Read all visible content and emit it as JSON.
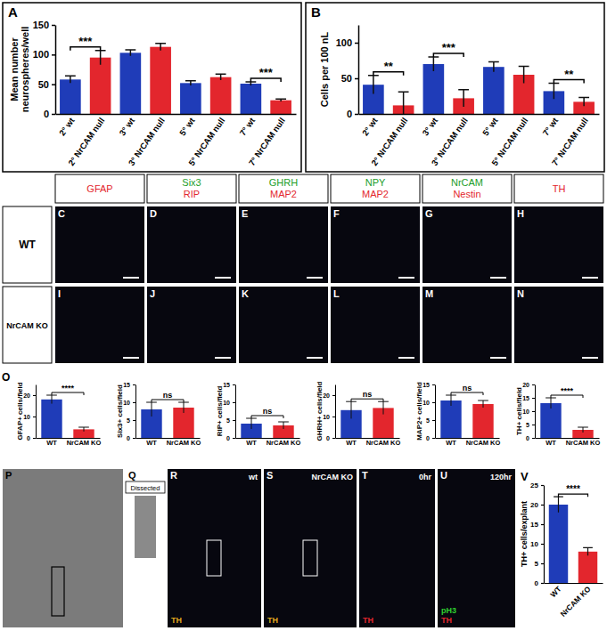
{
  "chart_data": [
    {
      "type": "bar",
      "title": "A",
      "ylabel": "Mean number neurospheres/well",
      "categories": [
        "2° wt",
        "2° NrCAM null",
        "3° wt",
        "3° NrCAM null",
        "5° wt",
        "5° NrCAM null",
        "7° wt",
        "7° NrCAM null"
      ],
      "values": [
        58,
        95,
        103,
        113,
        52,
        62,
        51,
        23
      ],
      "errors": [
        6,
        12,
        5,
        6,
        4,
        5,
        3,
        2
      ],
      "colors": [
        "#1f3cb8",
        "#e3262d",
        "#1f3cb8",
        "#e3262d",
        "#1f3cb8",
        "#e3262d",
        "#1f3cb8",
        "#e3262d"
      ],
      "ylim": [
        0,
        150
      ],
      "yticks": [
        0,
        50,
        100,
        150
      ],
      "annotations": [
        {
          "text": "***",
          "from": 0,
          "to": 1
        },
        {
          "text": "***",
          "from": 6,
          "to": 7
        }
      ]
    },
    {
      "type": "bar",
      "title": "B",
      "ylabel": "Cells per 100 nL",
      "categories": [
        "2° wt",
        "2° NrCAM null",
        "3° wt",
        "3° NrCAM null",
        "5° wt",
        "5° NrCAM null",
        "7° wt",
        "7° NrCAM null"
      ],
      "values": [
        41,
        12,
        70,
        22,
        66,
        55,
        32,
        17
      ],
      "errors": [
        13,
        19,
        10,
        12,
        7,
        12,
        11,
        6
      ],
      "colors": [
        "#1f3cb8",
        "#e3262d",
        "#1f3cb8",
        "#e3262d",
        "#1f3cb8",
        "#e3262d",
        "#1f3cb8",
        "#e3262d"
      ],
      "ylim": [
        0,
        125
      ],
      "yticks": [
        0,
        50,
        100
      ],
      "annotations": [
        {
          "text": "**",
          "from": 0,
          "to": 1
        },
        {
          "text": "***",
          "from": 2,
          "to": 3
        },
        {
          "text": "**",
          "from": 6,
          "to": 7
        }
      ]
    },
    {
      "type": "bar",
      "ylabel": "GFAP+ cells/field",
      "categories": [
        "WT",
        "NrCAM KO"
      ],
      "values": [
        18,
        4
      ],
      "errors": [
        2,
        1
      ],
      "colors": [
        "#1f3cb8",
        "#e3262d"
      ],
      "ylim": [
        0,
        25
      ],
      "yticks": [
        0,
        10,
        20
      ],
      "annotations": [
        {
          "text": "****",
          "from": 0,
          "to": 1
        }
      ]
    },
    {
      "type": "bar",
      "ylabel": "Six3+ cells/field",
      "categories": [
        "WT",
        "NrCAM KO"
      ],
      "values": [
        8,
        8.5
      ],
      "errors": [
        2,
        1.5
      ],
      "colors": [
        "#1f3cb8",
        "#e3262d"
      ],
      "ylim": [
        0,
        15
      ],
      "yticks": [
        0,
        5,
        10,
        15
      ],
      "annotations": [
        {
          "text": "ns",
          "from": 0,
          "to": 1
        }
      ]
    },
    {
      "type": "bar",
      "ylabel": "RIP+ cells/field",
      "categories": [
        "WT",
        "NrCAM KO"
      ],
      "values": [
        4,
        3.5
      ],
      "errors": [
        1.5,
        1
      ],
      "colors": [
        "#1f3cb8",
        "#e3262d"
      ],
      "ylim": [
        0,
        15
      ],
      "yticks": [
        0,
        5,
        10,
        15
      ],
      "annotations": [
        {
          "text": "ns",
          "from": 0,
          "to": 1
        }
      ]
    },
    {
      "type": "bar",
      "ylabel": "GHRH+ cells/field",
      "categories": [
        "WT",
        "NrCAM KO"
      ],
      "values": [
        13,
        14
      ],
      "errors": [
        4,
        3
      ],
      "colors": [
        "#1f3cb8",
        "#e3262d"
      ],
      "ylim": [
        0,
        25
      ],
      "yticks": [
        0,
        10,
        20
      ],
      "annotations": [
        {
          "text": "ns",
          "from": 0,
          "to": 1
        }
      ]
    },
    {
      "type": "bar",
      "ylabel": "MAP2+ cells/field",
      "categories": [
        "WT",
        "NrCAM KO"
      ],
      "values": [
        10.5,
        9.5
      ],
      "errors": [
        1.5,
        1
      ],
      "colors": [
        "#1f3cb8",
        "#e3262d"
      ],
      "ylim": [
        0,
        15
      ],
      "yticks": [
        0,
        5,
        10,
        15
      ],
      "annotations": [
        {
          "text": "ns",
          "from": 0,
          "to": 1
        }
      ]
    },
    {
      "type": "bar",
      "ylabel": "TH+ cells/field",
      "categories": [
        "WT",
        "NrCAM KO"
      ],
      "values": [
        13,
        3
      ],
      "errors": [
        2,
        1
      ],
      "colors": [
        "#1f3cb8",
        "#e3262d"
      ],
      "ylim": [
        0,
        20
      ],
      "yticks": [
        0,
        5,
        10,
        15,
        20
      ],
      "annotations": [
        {
          "text": "****",
          "from": 0,
          "to": 1
        }
      ]
    },
    {
      "type": "bar",
      "title": "V",
      "ylabel": "TH+ cells/explant",
      "categories": [
        "WT",
        "NrCAM KO"
      ],
      "values": [
        20,
        8
      ],
      "errors": [
        2,
        1
      ],
      "colors": [
        "#1f3cb8",
        "#e3262d"
      ],
      "ylim": [
        0,
        25
      ],
      "yticks": [
        0,
        5,
        10,
        15,
        20,
        25
      ],
      "annotations": [
        {
          "text": "****",
          "from": 0,
          "to": 1
        }
      ]
    }
  ],
  "panels": {
    "stains": [
      [
        {
          "text": "GFAP",
          "color": "#e3262d"
        }
      ],
      [
        {
          "text": "Six3",
          "color": "#1d9e2a"
        },
        {
          "text": "RIP",
          "color": "#e3262d"
        }
      ],
      [
        {
          "text": "GHRH",
          "color": "#1d9e2a"
        },
        {
          "text": "MAP2",
          "color": "#e3262d"
        }
      ],
      [
        {
          "text": "NPY",
          "color": "#1d9e2a"
        },
        {
          "text": "MAP2",
          "color": "#e3262d"
        }
      ],
      [
        {
          "text": "NrCAM",
          "color": "#1d9e2a"
        },
        {
          "text": "Nestin",
          "color": "#e3262d"
        }
      ],
      [
        {
          "text": "TH",
          "color": "#e3262d"
        }
      ]
    ],
    "rows": [
      {
        "label": "WT",
        "letters": [
          "C",
          "D",
          "E",
          "F",
          "G",
          "H"
        ]
      },
      {
        "label": "NrCAM KO",
        "letters": [
          "I",
          "J",
          "K",
          "L",
          "M",
          "N"
        ]
      }
    ],
    "o_letter": "O",
    "bottom": [
      {
        "letter": "P"
      },
      {
        "letter": "Q",
        "texts": [
          {
            "text": "Dissected",
            "color": "#000000"
          }
        ]
      },
      {
        "letter": "R",
        "texts": [
          {
            "text": "wt",
            "color": "#ffffff"
          },
          {
            "text": "TH",
            "color": "#e0a81e"
          }
        ]
      },
      {
        "letter": "S",
        "texts": [
          {
            "text": "NrCAM KO",
            "color": "#ffffff"
          },
          {
            "text": "TH",
            "color": "#e0a81e"
          }
        ]
      },
      {
        "letter": "T",
        "texts": [
          {
            "text": "0hr",
            "color": "#ffffff"
          },
          {
            "text": "TH",
            "color": "#e3262d"
          }
        ]
      },
      {
        "letter": "U",
        "texts": [
          {
            "text": "120hr",
            "color": "#ffffff"
          },
          {
            "text": "pH3",
            "color": "#2fd02f"
          },
          {
            "text": "TH",
            "color": "#e3262d"
          }
        ]
      }
    ]
  }
}
